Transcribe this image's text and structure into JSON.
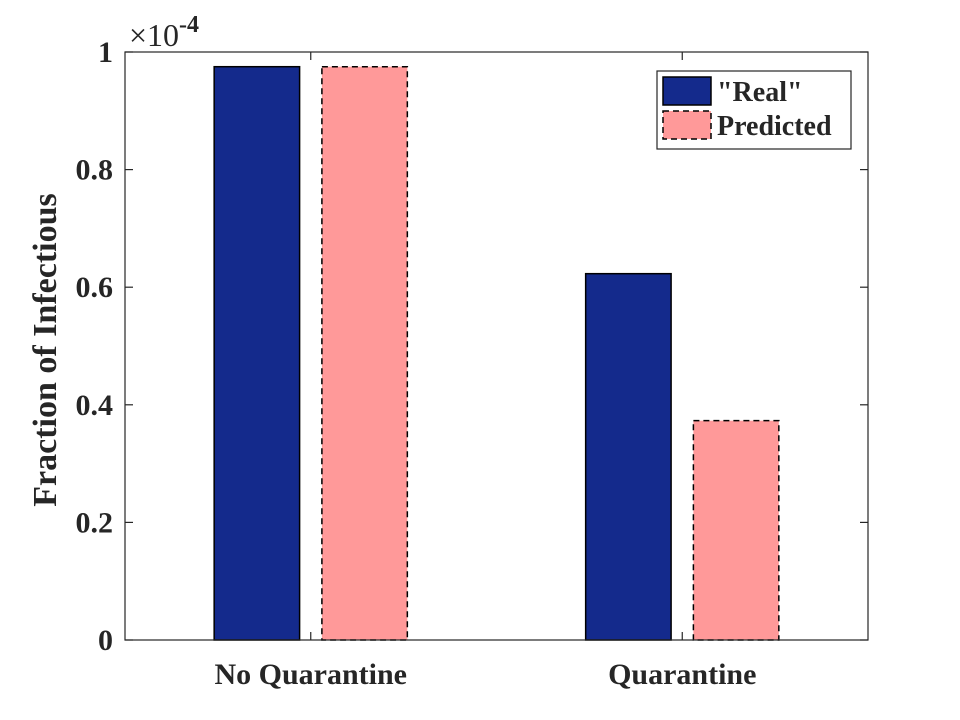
{
  "chart_data": {
    "type": "bar",
    "categories": [
      "No Quarantine",
      "Quarantine"
    ],
    "series": [
      {
        "name": "\"Real\"",
        "values": [
          0.975,
          0.623
        ],
        "color": "#142A8C",
        "edge_style": "solid"
      },
      {
        "name": "Predicted",
        "values": [
          0.975,
          0.373
        ],
        "color": "#FF9999",
        "edge_style": "dashed"
      }
    ],
    "title": "",
    "xlabel": "",
    "ylabel": "Fraction of Infectious",
    "ylim": [
      0,
      1
    ],
    "y_ticks": [
      0,
      0.2,
      0.4,
      0.6,
      0.8,
      1
    ],
    "y_tick_labels": [
      "0",
      "0.2",
      "0.4",
      "0.6",
      "0.8",
      "1"
    ],
    "y_exponent_prefix": "×10",
    "y_exponent": "-4",
    "grid": false,
    "legend_position": "top-right",
    "axis_color": "#262626"
  }
}
